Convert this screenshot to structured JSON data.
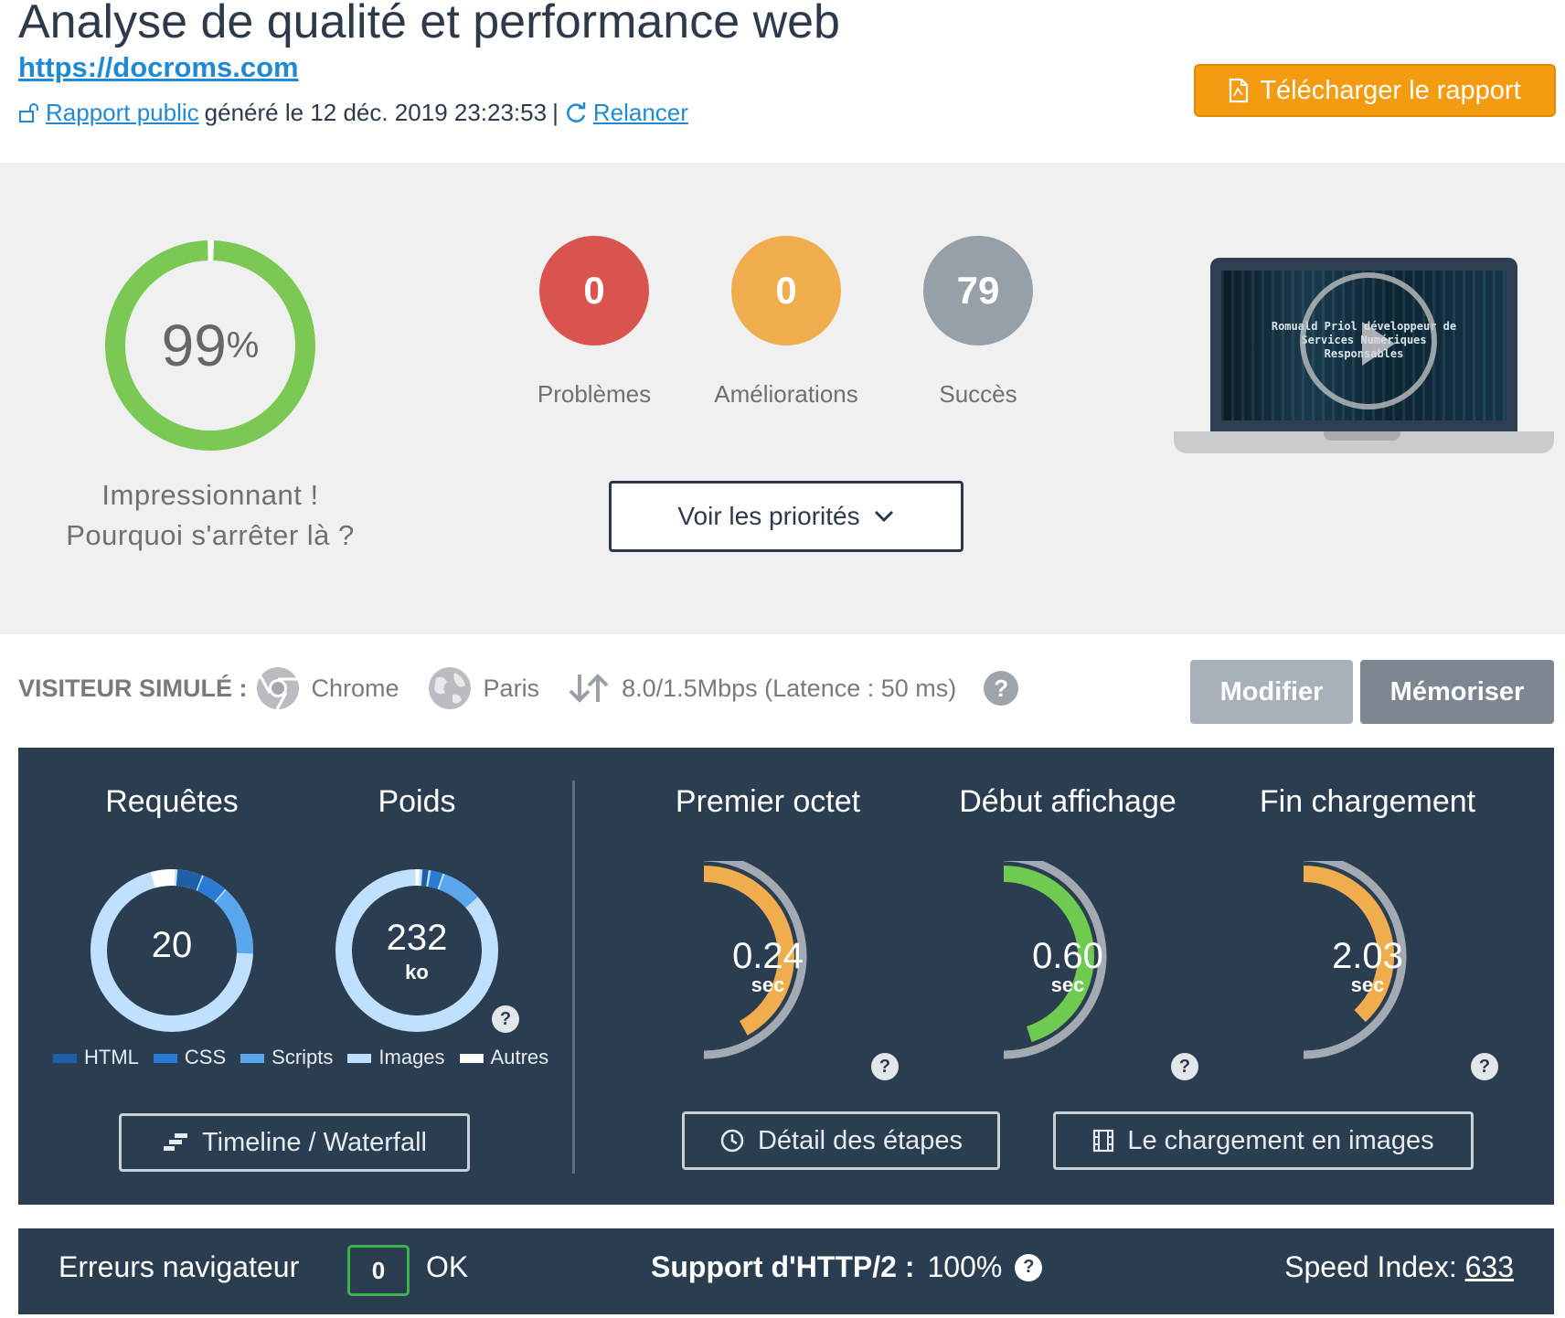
{
  "header": {
    "title": "Analyse de qualité et performance web",
    "url": "https://docroms.com",
    "public_report_link": "Rapport public",
    "generated_text": "généré le 12 déc. 2019 23:23:53",
    "separator": "|",
    "rerun_link": "Relancer",
    "download_label": "Télécharger le rapport"
  },
  "score": {
    "value": "99",
    "percent_sign": "%",
    "fraction": 0.99,
    "message_line1": "Impressionnant !",
    "message_line2": "Pourquoi s'arrêter là ?",
    "ring_color": "#7cc855"
  },
  "stats": [
    {
      "value": "0",
      "label": "Problèmes",
      "color": "#d9534f"
    },
    {
      "value": "0",
      "label": "Améliorations",
      "color": "#f0ad4e"
    },
    {
      "value": "79",
      "label": "Succès",
      "color": "#95a0a8"
    }
  ],
  "priorities_label": "Voir les priorités",
  "video": {
    "line1": "Romuald Priol développeur de",
    "line2": "Services Numériques",
    "line3": "Responsables"
  },
  "visitor": {
    "label": "VISITEUR SIMULÉ :",
    "browser": "Chrome",
    "location": "Paris",
    "connection": "8.0/1.5Mbps (Latence : 50 ms)",
    "help": "?",
    "modify_label": "Modifier",
    "save_label": "Mémoriser"
  },
  "metrics": {
    "requests": {
      "title": "Requêtes",
      "value": "20"
    },
    "weight": {
      "title": "Poids",
      "value": "232",
      "unit": "ko"
    },
    "legend": [
      {
        "label": "HTML",
        "color": "#1f5fa8"
      },
      {
        "label": "CSS",
        "color": "#2a7bd6"
      },
      {
        "label": "Scripts",
        "color": "#5aa7ee"
      },
      {
        "label": "Images",
        "color": "#bfe0ff"
      },
      {
        "label": "Autres",
        "color": "#ffffff"
      }
    ],
    "timings": [
      {
        "title": "Premier octet",
        "value": "0.24",
        "unit": "sec",
        "fraction": 0.42,
        "color": "#f0ad4e"
      },
      {
        "title": "Début affichage",
        "value": "0.60",
        "unit": "sec",
        "fraction": 0.45,
        "color": "#6ecb4f"
      },
      {
        "title": "Fin chargement",
        "value": "2.03",
        "unit": "sec",
        "fraction": 0.38,
        "color": "#f0ad4e"
      }
    ],
    "timeline_label": "Timeline / Waterfall",
    "steps_label": "Détail des étapes",
    "images_label": "Le chargement en images",
    "help": "?"
  },
  "bottom": {
    "errors_label": "Erreurs navigateur",
    "errors_count": "0",
    "errors_status": "OK",
    "http2_label": "Support d'HTTP/2 :",
    "http2_value": "100%",
    "speed_label": "Speed Index:",
    "speed_value": "633",
    "help": "?"
  }
}
